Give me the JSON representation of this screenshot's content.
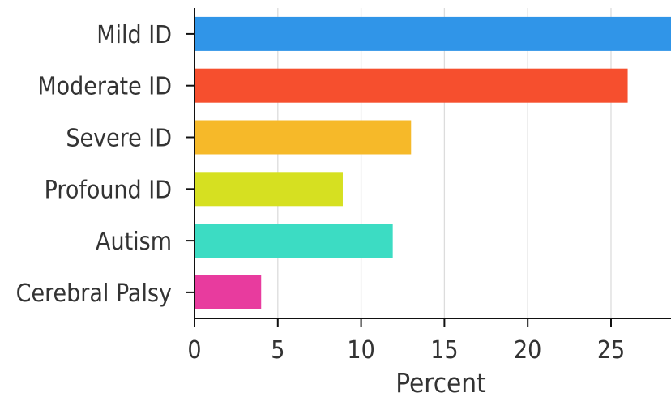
{
  "chart_data": {
    "type": "bar",
    "orientation": "horizontal",
    "categories": [
      "Mild ID",
      "Moderate ID",
      "Severe ID",
      "Profound ID",
      "Autism",
      "Cerebral Palsy"
    ],
    "values": [
      28.6,
      26.0,
      13.0,
      8.9,
      11.9,
      4.0
    ],
    "colors": [
      "#3095e8",
      "#f64f2e",
      "#f6b929",
      "#d6e021",
      "#3cdcc3",
      "#e83b9e"
    ],
    "xlabel": "Percent",
    "ylabel": "",
    "xlim": [
      0,
      28.6
    ],
    "xticks": [
      0,
      5,
      10,
      15,
      20,
      25
    ],
    "grid": true
  }
}
